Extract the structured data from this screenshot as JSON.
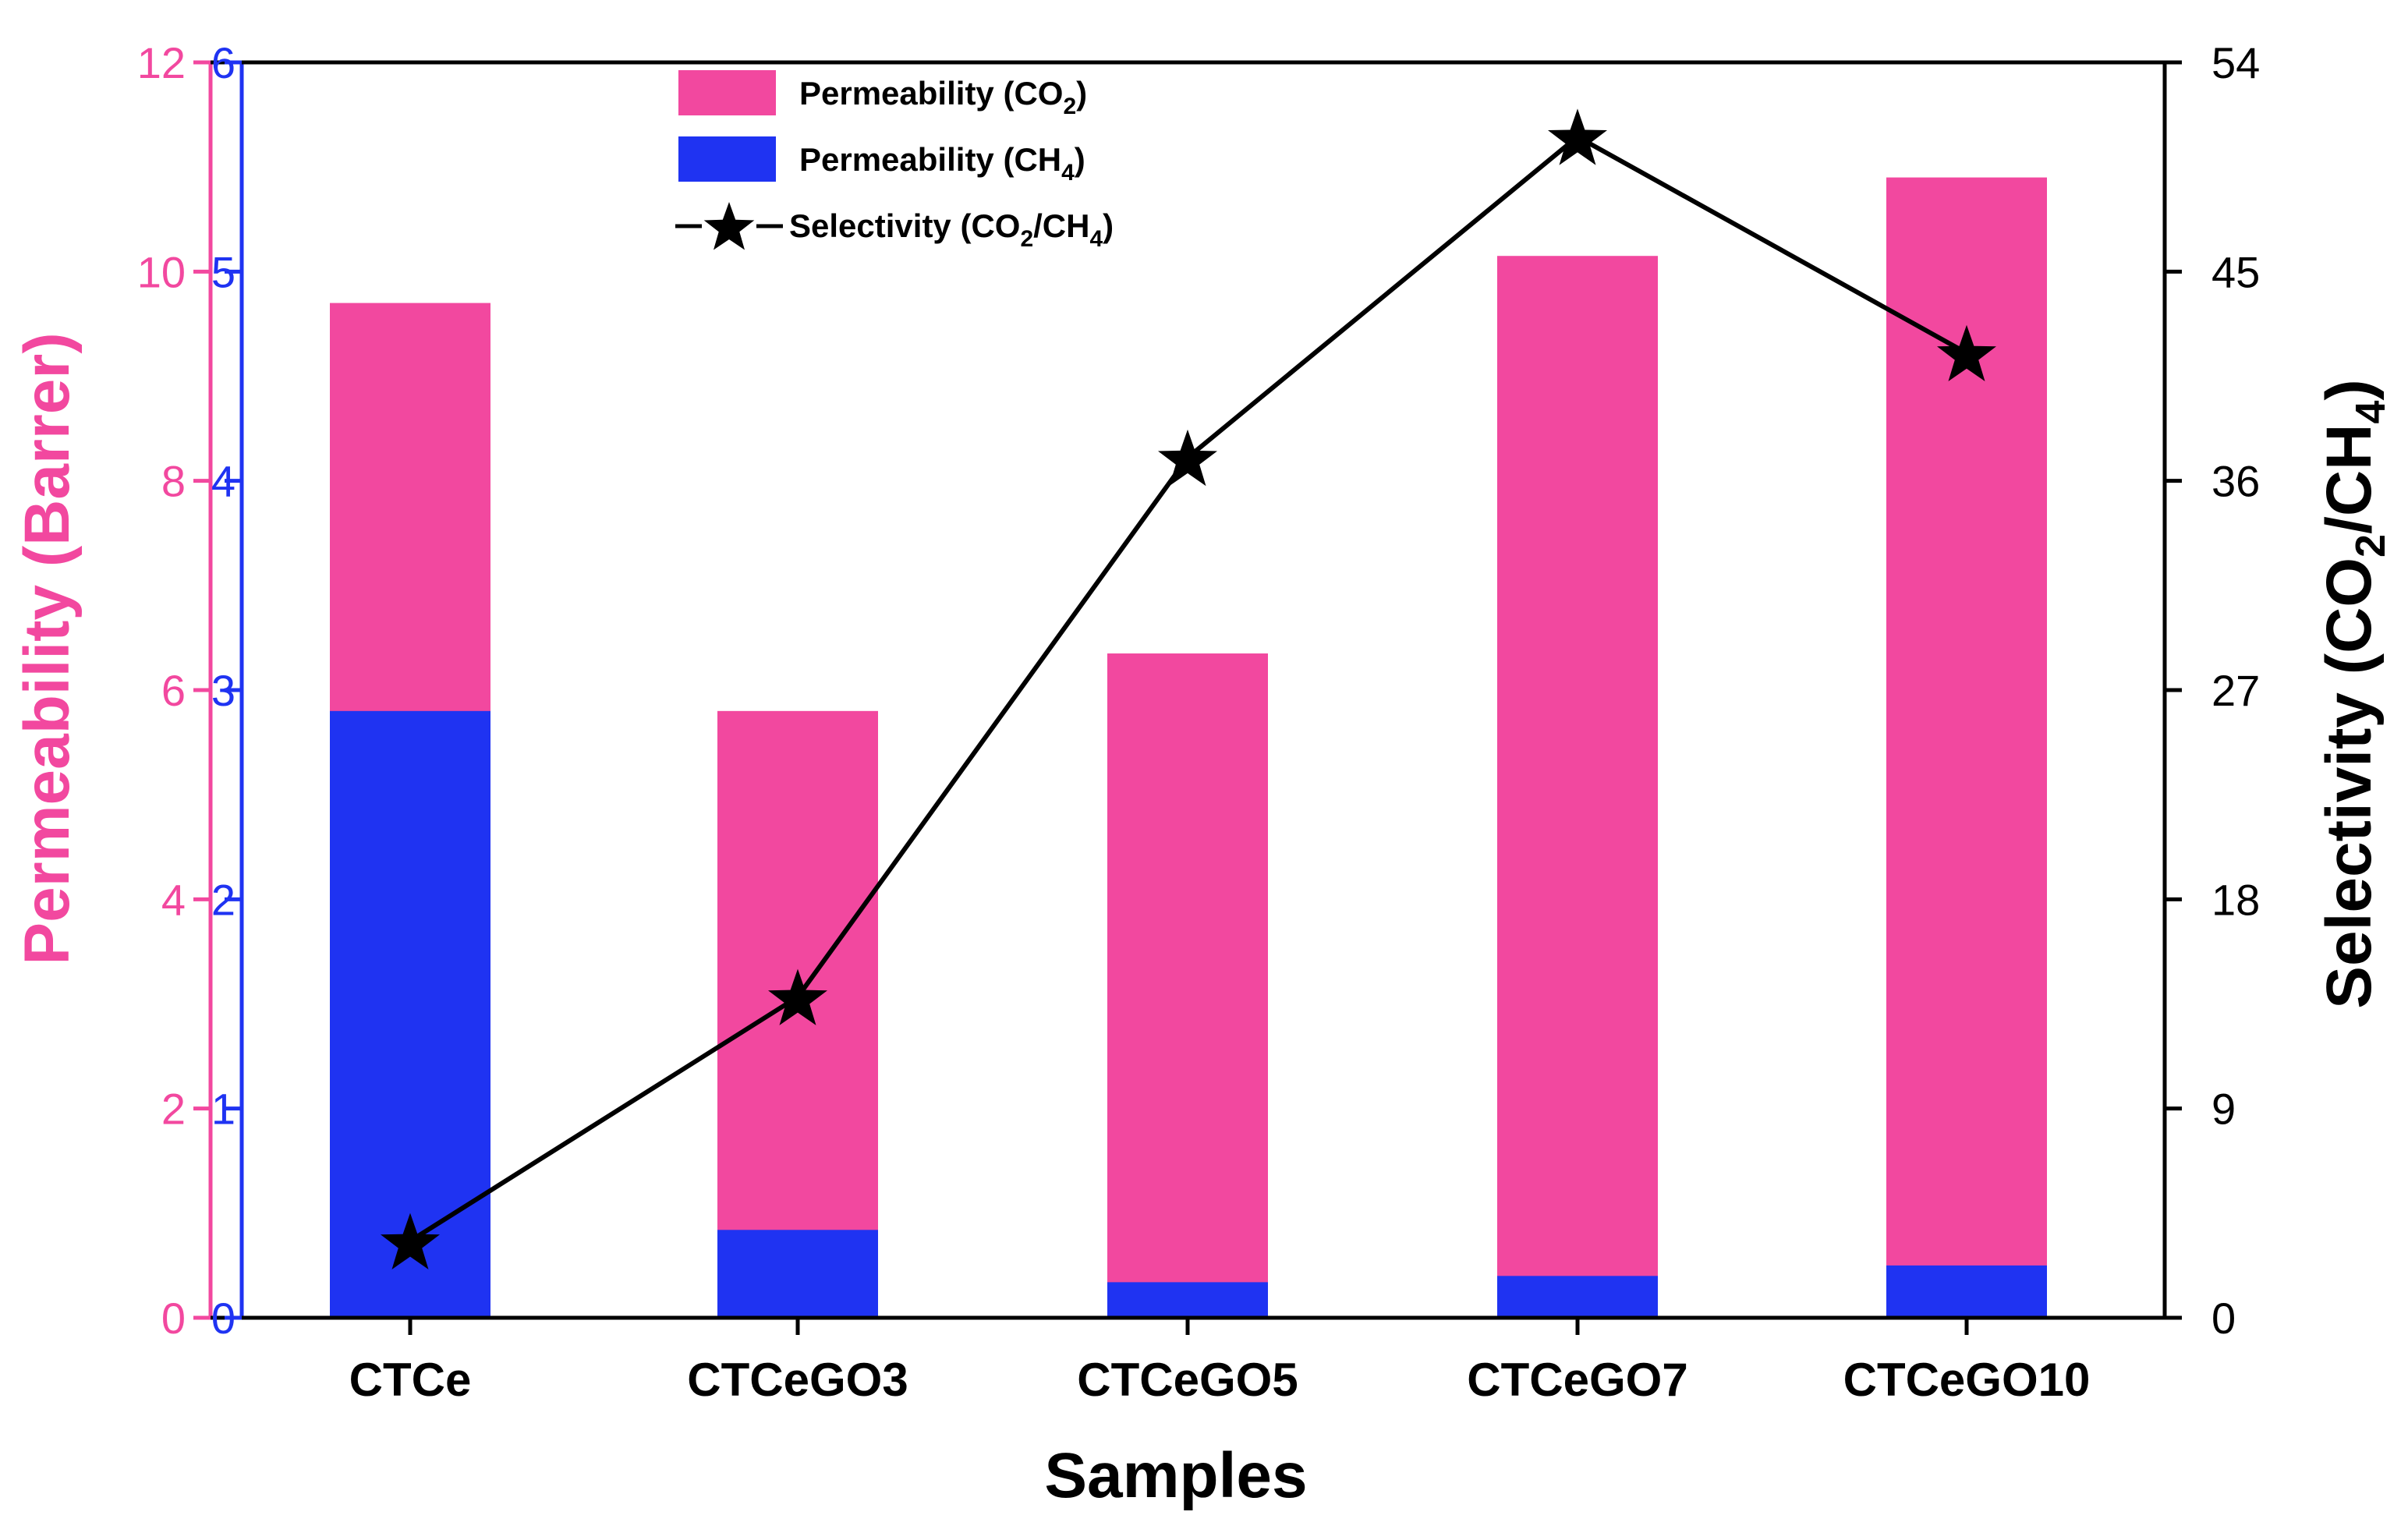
{
  "colors": {
    "co2": "#f2489f",
    "ch4": "#1f33f2",
    "selectivity": "#000000",
    "axis_left_outer": "#f2489f",
    "axis_left_inner": "#1f33f2",
    "axis_right": "#000000"
  },
  "chart_data": {
    "type": "bar",
    "title": "",
    "categories": [
      "CTCe",
      "CTCeGO3",
      "CTCeGO5",
      "CTCeGO7",
      "CTCeGO10"
    ],
    "xlabel": "Samples",
    "ylabel": "Permeability (Barrer)",
    "ylabel_right": "Selectivity (CO2/CH4)",
    "ylim_left_outer": [
      0,
      12
    ],
    "yticks_left_outer": [
      "0",
      "2",
      "4",
      "6",
      "8",
      "10",
      "12"
    ],
    "ylim_left_inner": [
      0,
      6
    ],
    "yticks_left_inner": [
      "0",
      "1",
      "2",
      "3",
      "4",
      "5",
      "6"
    ],
    "ylim_right": [
      0,
      54
    ],
    "yticks_right": [
      "0",
      "9",
      "18",
      "27",
      "36",
      "45",
      "54"
    ],
    "series": [
      {
        "name": "Permeability (CO2)",
        "axis": "left_outer",
        "type": "bar",
        "values": [
          9.7,
          5.8,
          6.35,
          10.15,
          10.9
        ]
      },
      {
        "name": "Permeability (CH4)",
        "axis": "left_inner",
        "type": "bar",
        "values": [
          2.9,
          0.42,
          0.17,
          0.2,
          0.25
        ]
      },
      {
        "name": "Selectivity (CO2/CH4)",
        "axis": "right",
        "type": "line",
        "marker": "star",
        "values": [
          3.3,
          13.8,
          37.0,
          50.8,
          41.5
        ]
      }
    ],
    "legend": {
      "position": "top-center",
      "entries": [
        {
          "base": "Permeability (CO",
          "sub1": "2",
          "mid": ")",
          "sub2": "",
          "end": ""
        },
        {
          "base": "Permeability (CH",
          "sub1": "4",
          "mid": ")",
          "sub2": "",
          "end": ""
        },
        {
          "base": "Selectivity (CO",
          "sub1": "2",
          "mid": "/CH",
          "sub2": "4",
          "end": ")"
        }
      ]
    },
    "ylabel_right_parts": {
      "base": "Selectivity (CO",
      "sub1": "2",
      "mid": "/CH",
      "sub2": "4",
      "end": ")"
    }
  }
}
